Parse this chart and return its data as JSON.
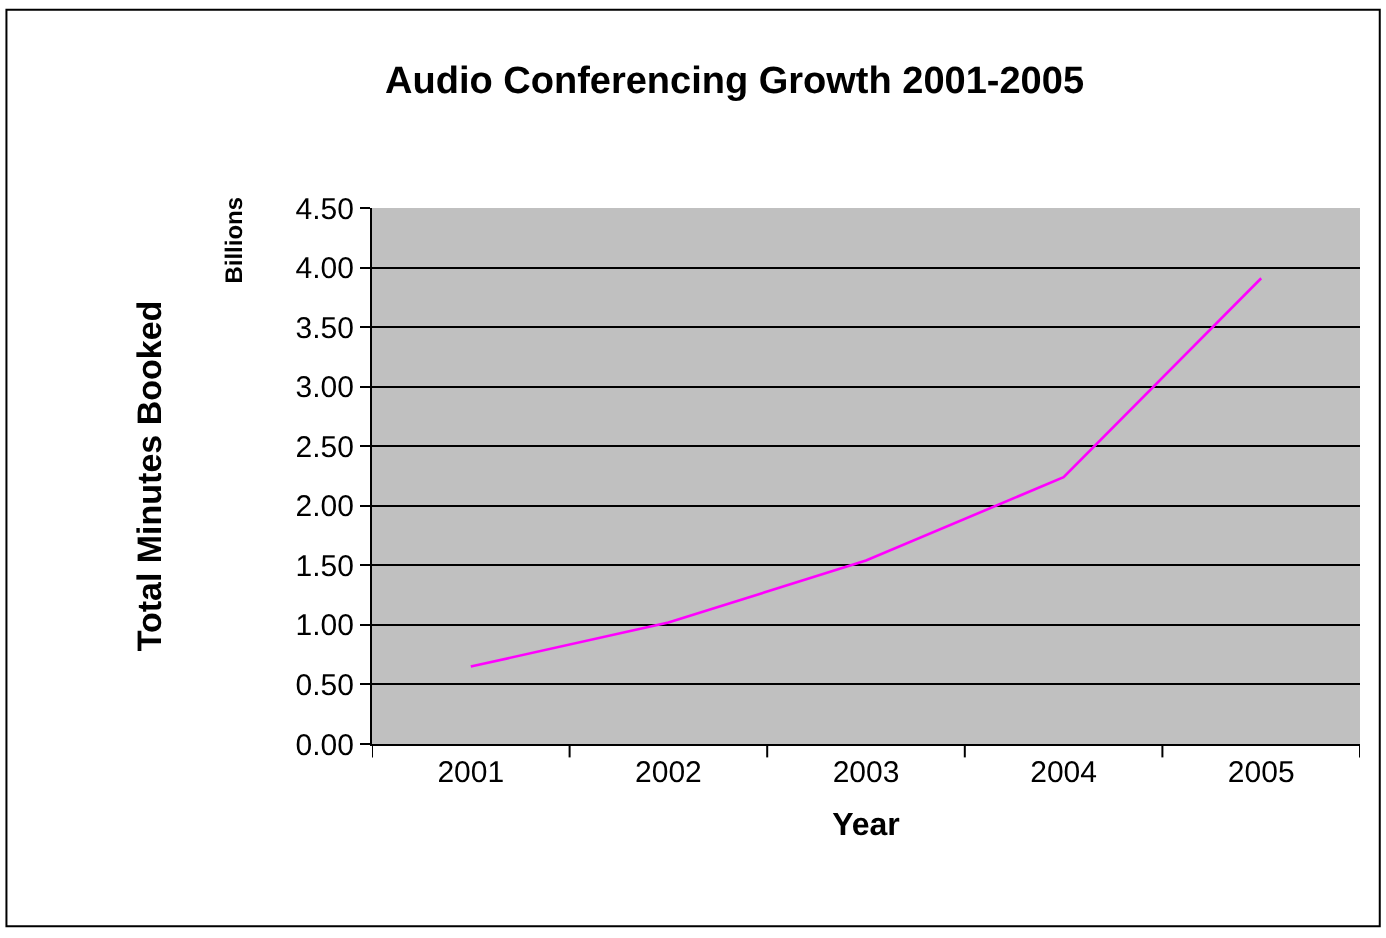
{
  "chart_data": {
    "type": "line",
    "title": "Audio Conferencing Growth 2001-2005",
    "xlabel": "Year",
    "ylabel": "Total Minutes Booked",
    "annotations": [
      "Billions"
    ],
    "categories": [
      "2001",
      "2002",
      "2003",
      "2004",
      "2005"
    ],
    "series": [
      {
        "color": "#ff00ff",
        "values": [
          0.65,
          1.02,
          1.54,
          2.24,
          3.91
        ]
      }
    ],
    "ylim": [
      0,
      4.5
    ],
    "yticks": [
      {
        "value": 0,
        "label": "0.00"
      },
      {
        "value": 0.5,
        "label": "0.50"
      },
      {
        "value": 1,
        "label": "1.00"
      },
      {
        "value": 1.5,
        "label": "1.50"
      },
      {
        "value": 2,
        "label": "2.00"
      },
      {
        "value": 2.5,
        "label": "2.50"
      },
      {
        "value": 3,
        "label": "3.00"
      },
      {
        "value": 3.5,
        "label": "3.50"
      },
      {
        "value": 4,
        "label": "4.00"
      },
      {
        "value": 4.5,
        "label": "4.50"
      }
    ],
    "grid": "y",
    "marker": "none",
    "line_style": "solid"
  }
}
